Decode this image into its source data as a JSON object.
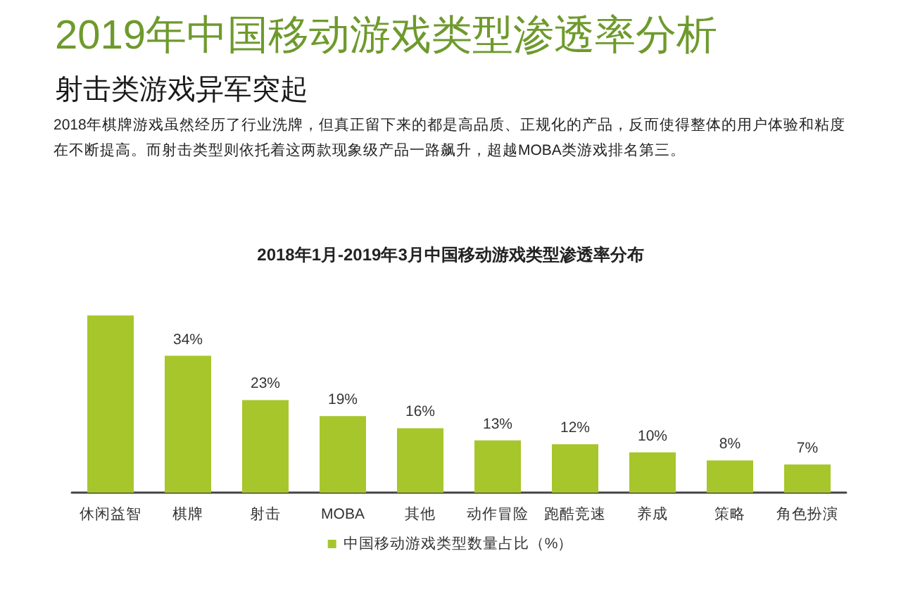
{
  "chart_data": {
    "type": "bar",
    "title": "2019年中国移动游戏类型渗透率分析",
    "subtitle": "射击类游戏异军突起",
    "annotations": [
      "2018年棋牌游戏虽然经历了行业洗牌，但真正留下来的都是高品质、正规化的产品，反而使得整体的用户体验和粘度在不断提高。而射击类型则依托着这两款现象级产品一路飙升，超越MOBA类游戏排名第三。",
      "2018年1月-2019年3月中国移动游戏类型渗透率分布"
    ],
    "categories": [
      "休闲益智",
      "棋牌",
      "射击",
      "MOBA",
      "其他",
      "动作冒险",
      "跑酷竞速",
      "养成",
      "策略",
      "角色扮演"
    ],
    "series": [
      {
        "name": "中国移动游戏类型数量占比（%）",
        "color": "#a7c62b",
        "values": [
          44,
          34,
          23,
          19,
          16,
          13,
          12,
          10,
          8,
          7
        ],
        "value_labels": [
          null,
          "34%",
          "23%",
          "19%",
          "16%",
          "13%",
          "12%",
          "10%",
          "8%",
          "7%"
        ]
      }
    ],
    "legend": "bottom",
    "grid": false
  }
}
